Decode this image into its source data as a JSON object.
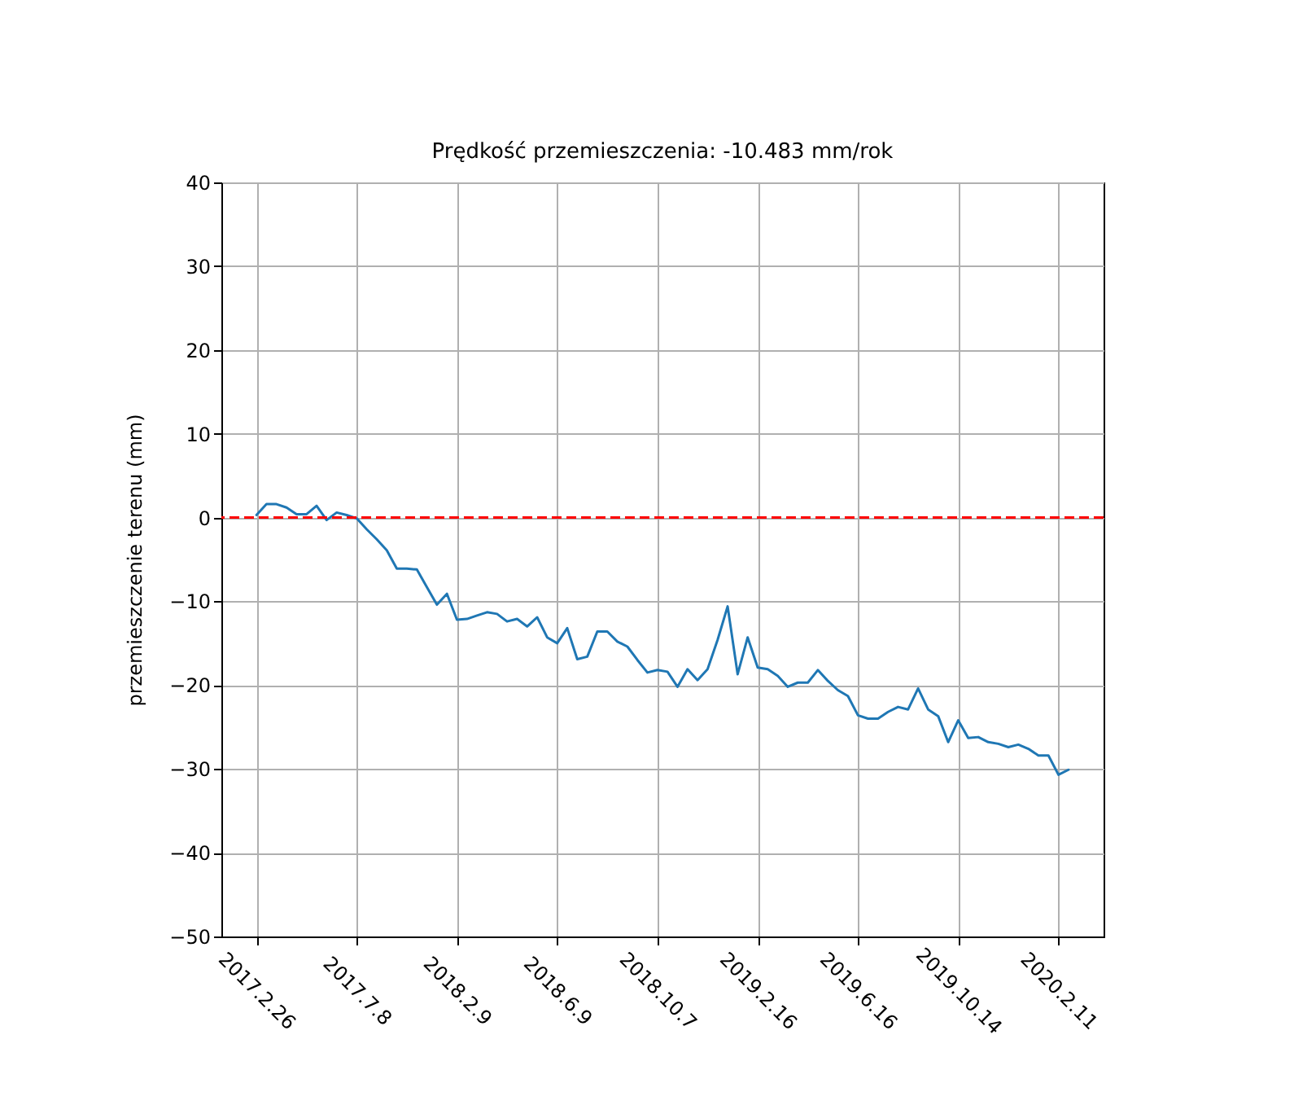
{
  "chart_data": {
    "type": "line",
    "title": "Prędkość przemieszczenia: -10.483 mm/rok",
    "ylabel": "przemieszczenie terenu (mm)",
    "categories": [
      null,
      null,
      null,
      "2017.2.26",
      null,
      null,
      null,
      null,
      null,
      null,
      null,
      null,
      null,
      "2017.7.8",
      null,
      null,
      null,
      null,
      null,
      null,
      null,
      null,
      null,
      "2018.2.9",
      null,
      null,
      null,
      null,
      null,
      null,
      null,
      null,
      null,
      "2018.6.9",
      null,
      null,
      null,
      null,
      null,
      null,
      null,
      null,
      null,
      "2018.10.7",
      null,
      null,
      null,
      null,
      null,
      null,
      null,
      null,
      null,
      "2019.2.16",
      null,
      null,
      null,
      null,
      null,
      null,
      null,
      null,
      null,
      "2019.6.16",
      null,
      null,
      null,
      null,
      null,
      null,
      null,
      null,
      null,
      "2019.10.14",
      null,
      null,
      null,
      null,
      null,
      null,
      null,
      null,
      null,
      "2020.2.11",
      null,
      null,
      null,
      null
    ],
    "ylim": [
      -50,
      40
    ],
    "yticks": [
      {
        "value": -50,
        "label": "−50"
      },
      {
        "value": -40,
        "label": "−40"
      },
      {
        "value": -30,
        "label": "−30"
      },
      {
        "value": -20,
        "label": "−20"
      },
      {
        "value": -10,
        "label": "−10"
      },
      0,
      10,
      20,
      30,
      40
    ],
    "grid": true,
    "line_style": "solid",
    "marker": "none",
    "ref_lines": [
      {
        "axis": "y",
        "value": 0,
        "color": "#ff0000",
        "line_style": "dashed"
      }
    ],
    "series": [
      {
        "color": "#1f77b4",
        "values": [
          null,
          null,
          null,
          0.3,
          1.6,
          1.6,
          1.2,
          0.4,
          0.4,
          1.4,
          -0.3,
          0.6,
          0.3,
          -0.1,
          -1.4,
          -2.6,
          -3.9,
          -6.1,
          -6.1,
          -6.2,
          -8.3,
          -10.4,
          -9.1,
          -12.2,
          -12.1,
          -11.7,
          -11.3,
          -11.5,
          -12.4,
          -12.1,
          -13,
          -11.9,
          -14.3,
          -15,
          -13.2,
          -16.9,
          -16.6,
          -13.6,
          -13.6,
          -14.8,
          -15.4,
          -17,
          -18.5,
          -18.2,
          -18.4,
          -20.2,
          -18.1,
          -19.4,
          -18.1,
          -14.6,
          -10.6,
          -18.7,
          -14.3,
          -17.9,
          -18.1,
          -18.9,
          -20.2,
          -19.7,
          -19.7,
          -18.2,
          -19.5,
          -20.6,
          -21.3,
          -23.6,
          -24,
          -24,
          -23.2,
          -22.6,
          -22.9,
          -20.4,
          -22.9,
          -23.7,
          -26.8,
          -24.2,
          -26.3,
          -26.2,
          -26.8,
          -27,
          -27.4,
          -27.1,
          -27.6,
          -28.4,
          -28.4,
          -30.7,
          -30.1,
          null,
          null,
          null
        ]
      }
    ]
  }
}
